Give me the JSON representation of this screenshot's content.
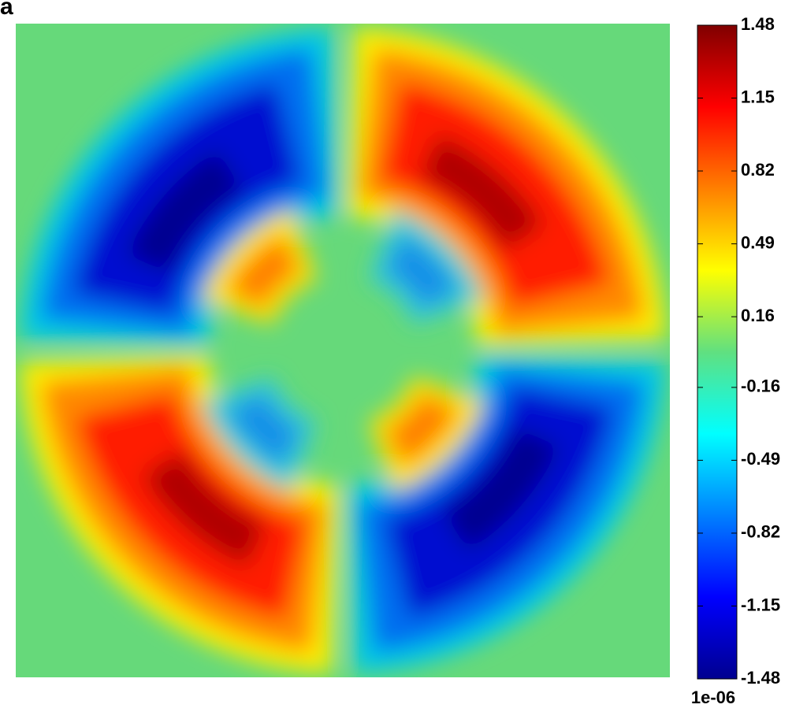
{
  "chart_data": {
    "type": "heatmap",
    "panel_label": "a",
    "colormap": "jet",
    "clim": [
      -1.48,
      1.48
    ],
    "colorbar_ticks": [
      1.48,
      1.15,
      0.82,
      0.49,
      0.16,
      -0.16,
      -0.49,
      -0.82,
      -1.15,
      -1.48
    ],
    "colorbar_exponent": "1e-06"
  }
}
